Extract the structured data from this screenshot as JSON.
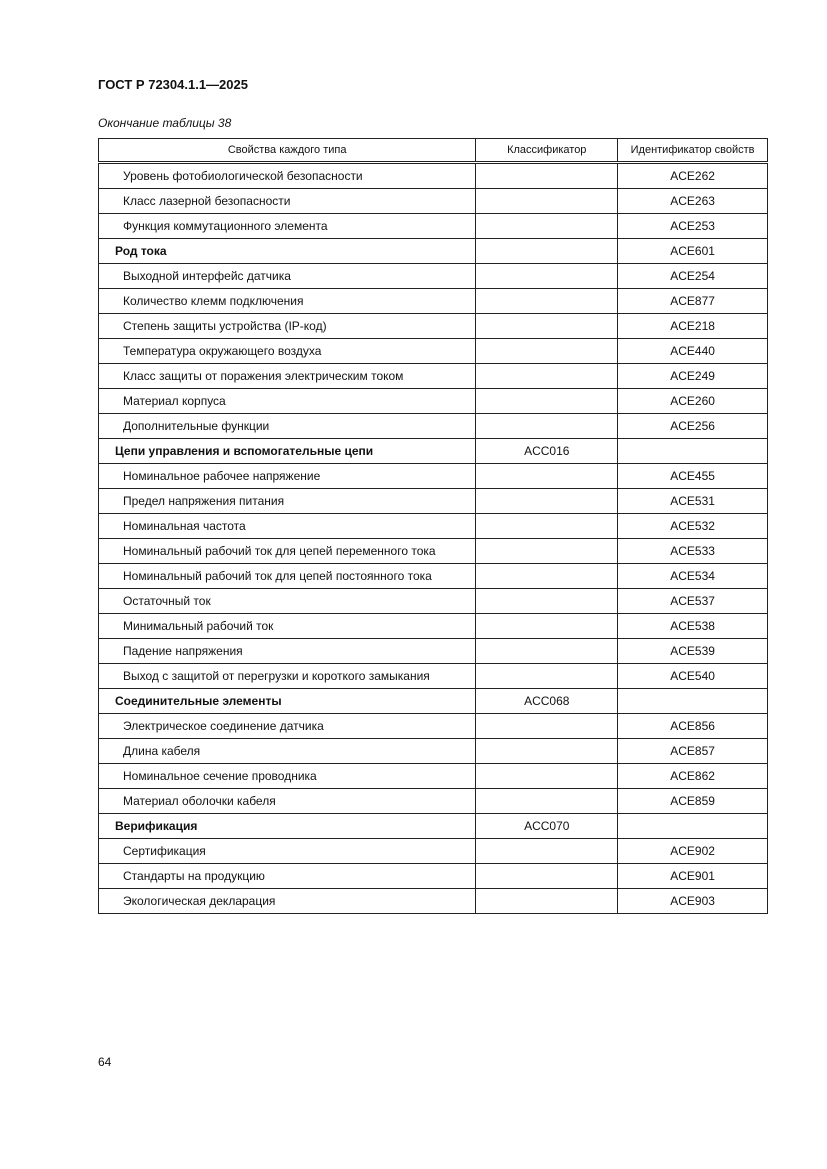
{
  "header": {
    "doc_code": "ГОСТ Р 72304.1.1—2025",
    "caption": "Окончание таблицы 38"
  },
  "table": {
    "columns": [
      "Свойства каждого типа",
      "Классификатор",
      "Идентификатор свойств"
    ],
    "rows": [
      {
        "name": "Уровень фотобиологической безопасности",
        "classifier": "",
        "id": "ACE262",
        "bold": false
      },
      {
        "name": "Класс лазерной безопасности",
        "classifier": "",
        "id": "ACE263",
        "bold": false
      },
      {
        "name": "Функция коммутационного элемента",
        "classifier": "",
        "id": "ACE253",
        "bold": false
      },
      {
        "name": "Род тока",
        "classifier": "",
        "id": "ACE601",
        "bold": true
      },
      {
        "name": "Выходной интерфейс датчика",
        "classifier": "",
        "id": "ACE254",
        "bold": false
      },
      {
        "name": "Количество клемм подключения",
        "classifier": "",
        "id": "ACE877",
        "bold": false
      },
      {
        "name": "Степень защиты устройства (IP-код)",
        "classifier": "",
        "id": "ACE218",
        "bold": false
      },
      {
        "name": "Температура окружающего воздуха",
        "classifier": "",
        "id": "ACE440",
        "bold": false
      },
      {
        "name": "Класс защиты от поражения электрическим током",
        "classifier": "",
        "id": "ACE249",
        "bold": false
      },
      {
        "name": "Материал корпуса",
        "classifier": "",
        "id": "ACE260",
        "bold": false
      },
      {
        "name": "Дополнительные функции",
        "classifier": "",
        "id": "ACE256",
        "bold": false
      },
      {
        "name": "Цепи управления и вспомогательные цепи",
        "classifier": "ACC016",
        "id": "",
        "bold": true
      },
      {
        "name": "Номинальное рабочее напряжение",
        "classifier": "",
        "id": "ACE455",
        "bold": false
      },
      {
        "name": "Предел напряжения питания",
        "classifier": "",
        "id": "ACE531",
        "bold": false
      },
      {
        "name": "Номинальная частота",
        "classifier": "",
        "id": "ACE532",
        "bold": false
      },
      {
        "name": "Номинальный рабочий ток для цепей переменного тока",
        "classifier": "",
        "id": "ACE533",
        "bold": false
      },
      {
        "name": "Номинальный рабочий ток для цепей постоянного тока",
        "classifier": "",
        "id": "ACE534",
        "bold": false
      },
      {
        "name": "Остаточный ток",
        "classifier": "",
        "id": "ACE537",
        "bold": false
      },
      {
        "name": "Минимальный рабочий ток",
        "classifier": "",
        "id": "ACE538",
        "bold": false
      },
      {
        "name": "Падение напряжения",
        "classifier": "",
        "id": "ACE539",
        "bold": false
      },
      {
        "name": "Выход с защитой от перегрузки и короткого замыкания",
        "classifier": "",
        "id": "ACE540",
        "bold": false
      },
      {
        "name": "Соединительные элементы",
        "classifier": "ACC068",
        "id": "",
        "bold": true
      },
      {
        "name": "Электрическое соединение датчика",
        "classifier": "",
        "id": "ACE856",
        "bold": false
      },
      {
        "name": "Длина кабеля",
        "classifier": "",
        "id": "ACE857",
        "bold": false
      },
      {
        "name": "Номинальное сечение проводника",
        "classifier": "",
        "id": "ACE862",
        "bold": false
      },
      {
        "name": "Материал оболочки кабеля",
        "classifier": "",
        "id": "ACE859",
        "bold": false
      },
      {
        "name": "Верификация",
        "classifier": "ACC070",
        "id": "",
        "bold": true
      },
      {
        "name": "Сертификация",
        "classifier": "",
        "id": "ACE902",
        "bold": false
      },
      {
        "name": "Стандарты на продукцию",
        "classifier": "",
        "id": "ACE901",
        "bold": false
      },
      {
        "name": "Экологическая декларация",
        "classifier": "",
        "id": "ACE903",
        "bold": false
      }
    ]
  },
  "footer": {
    "page_number": "64"
  }
}
